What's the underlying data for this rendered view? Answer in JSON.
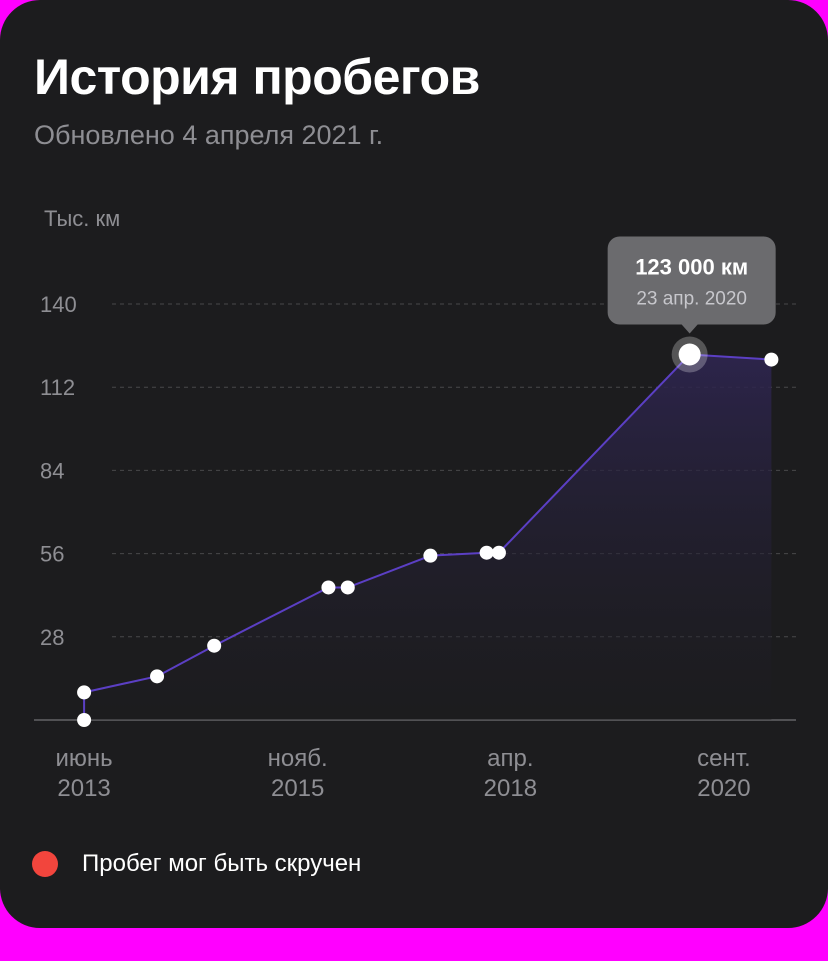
{
  "card": {
    "title": "История пробегов",
    "subtitle": "Обновлено 4 апреля 2021 г."
  },
  "chart_data": {
    "type": "line",
    "ylabel": "Тыс. км",
    "ylim": [
      0,
      140
    ],
    "yticks": [
      28,
      56,
      84,
      112,
      140
    ],
    "grid": true,
    "x_ticks": [
      {
        "line1": "июнь",
        "line2": "2013",
        "x": 2013.42
      },
      {
        "line1": "нояб.",
        "line2": "2015",
        "x": 2015.85
      },
      {
        "line1": "апр.",
        "line2": "2018",
        "x": 2018.27
      },
      {
        "line1": "сент.",
        "line2": "2020",
        "x": 2020.7
      }
    ],
    "xlim": [
      2012.85,
      2021.52
    ],
    "series": [
      {
        "values": [
          {
            "x": 2013.42,
            "y": 0
          },
          {
            "x": 2013.42,
            "y": 9.3
          },
          {
            "x": 2014.25,
            "y": 14.7
          },
          {
            "x": 2014.9,
            "y": 25
          },
          {
            "x": 2016.2,
            "y": 44.6
          },
          {
            "x": 2016.42,
            "y": 44.6
          },
          {
            "x": 2017.36,
            "y": 55.3
          },
          {
            "x": 2018.0,
            "y": 56.3
          },
          {
            "x": 2018.14,
            "y": 56.3
          },
          {
            "x": 2020.31,
            "y": 123
          },
          {
            "x": 2021.24,
            "y": 121.3
          }
        ]
      }
    ],
    "tooltip": {
      "value": "123 000 км",
      "date": "23 апр. 2020",
      "point_index": 9
    },
    "colors": {
      "line": "#5b3fc4",
      "fill": "#2a2240",
      "point": "#ffffff",
      "grid": "#48484a",
      "tick": "#8e8e93",
      "tooltip_bg": "#6b6b6e"
    }
  },
  "legend": {
    "items": [
      {
        "label": "Пробег мог быть скручен",
        "color": "#f2453d"
      }
    ]
  }
}
